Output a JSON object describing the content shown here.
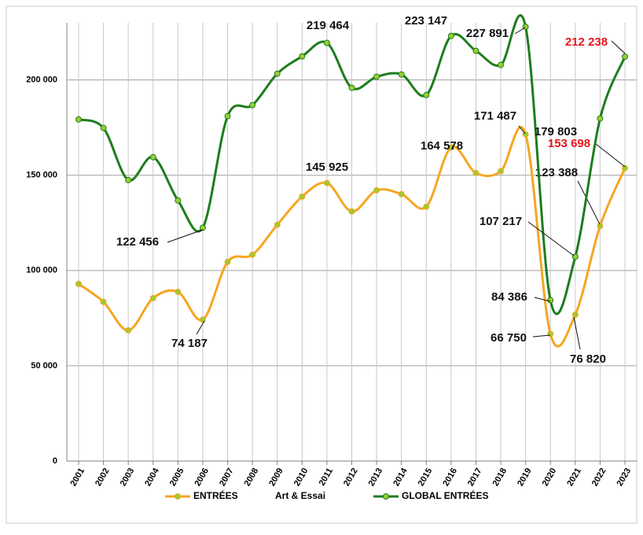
{
  "chart_data": {
    "type": "line",
    "categories": [
      "2001",
      "2002",
      "2003",
      "2004",
      "2005",
      "2006",
      "2007",
      "2008",
      "2009",
      "2010",
      "2011",
      "2012",
      "2013",
      "2014",
      "2015",
      "2016",
      "2017",
      "2018",
      "2019",
      "2020",
      "2021",
      "2022",
      "2023"
    ],
    "series": [
      {
        "name": "ENTRÉES",
        "color": "#f5a623",
        "values": [
          93000,
          83500,
          68600,
          85500,
          88800,
          74187,
          104500,
          108300,
          124000,
          138800,
          145925,
          131000,
          142100,
          140100,
          133500,
          164578,
          151200,
          152100,
          171487,
          66750,
          76820,
          123388,
          153698
        ],
        "value_labels": [
          null,
          null,
          null,
          null,
          null,
          "74 187",
          null,
          null,
          null,
          null,
          "145 925",
          null,
          null,
          null,
          null,
          "164 578",
          null,
          null,
          "171 487",
          "66 750",
          "76 820",
          "123 388",
          "153 698"
        ]
      },
      {
        "name": "GLOBAL ENTRÉES",
        "color": "#1e7d1e",
        "values": [
          179300,
          174800,
          147500,
          159500,
          136800,
          122456,
          181000,
          186800,
          203300,
          212400,
          219464,
          195900,
          201700,
          202900,
          192100,
          223147,
          215300,
          207900,
          227891,
          84386,
          107217,
          179803,
          212238
        ],
        "value_labels": [
          null,
          null,
          null,
          null,
          null,
          "122 456",
          null,
          null,
          null,
          null,
          "219 464",
          null,
          null,
          null,
          null,
          "223 147",
          null,
          null,
          "227 891",
          "84 386",
          "107 217",
          "179 803",
          "212 238"
        ]
      }
    ],
    "legend_note": "Art & Essai",
    "highlight_color": "#e8141b",
    "ylim": [
      0,
      230000
    ],
    "yticks": [
      0,
      {
        "value": 50000,
        "label": "50 000"
      },
      {
        "value": 100000,
        "label": "100 000"
      },
      {
        "value": 150000,
        "label": "150 000"
      },
      {
        "value": 200000,
        "label": "200 000"
      }
    ],
    "grid": true,
    "legend": "bottom"
  }
}
